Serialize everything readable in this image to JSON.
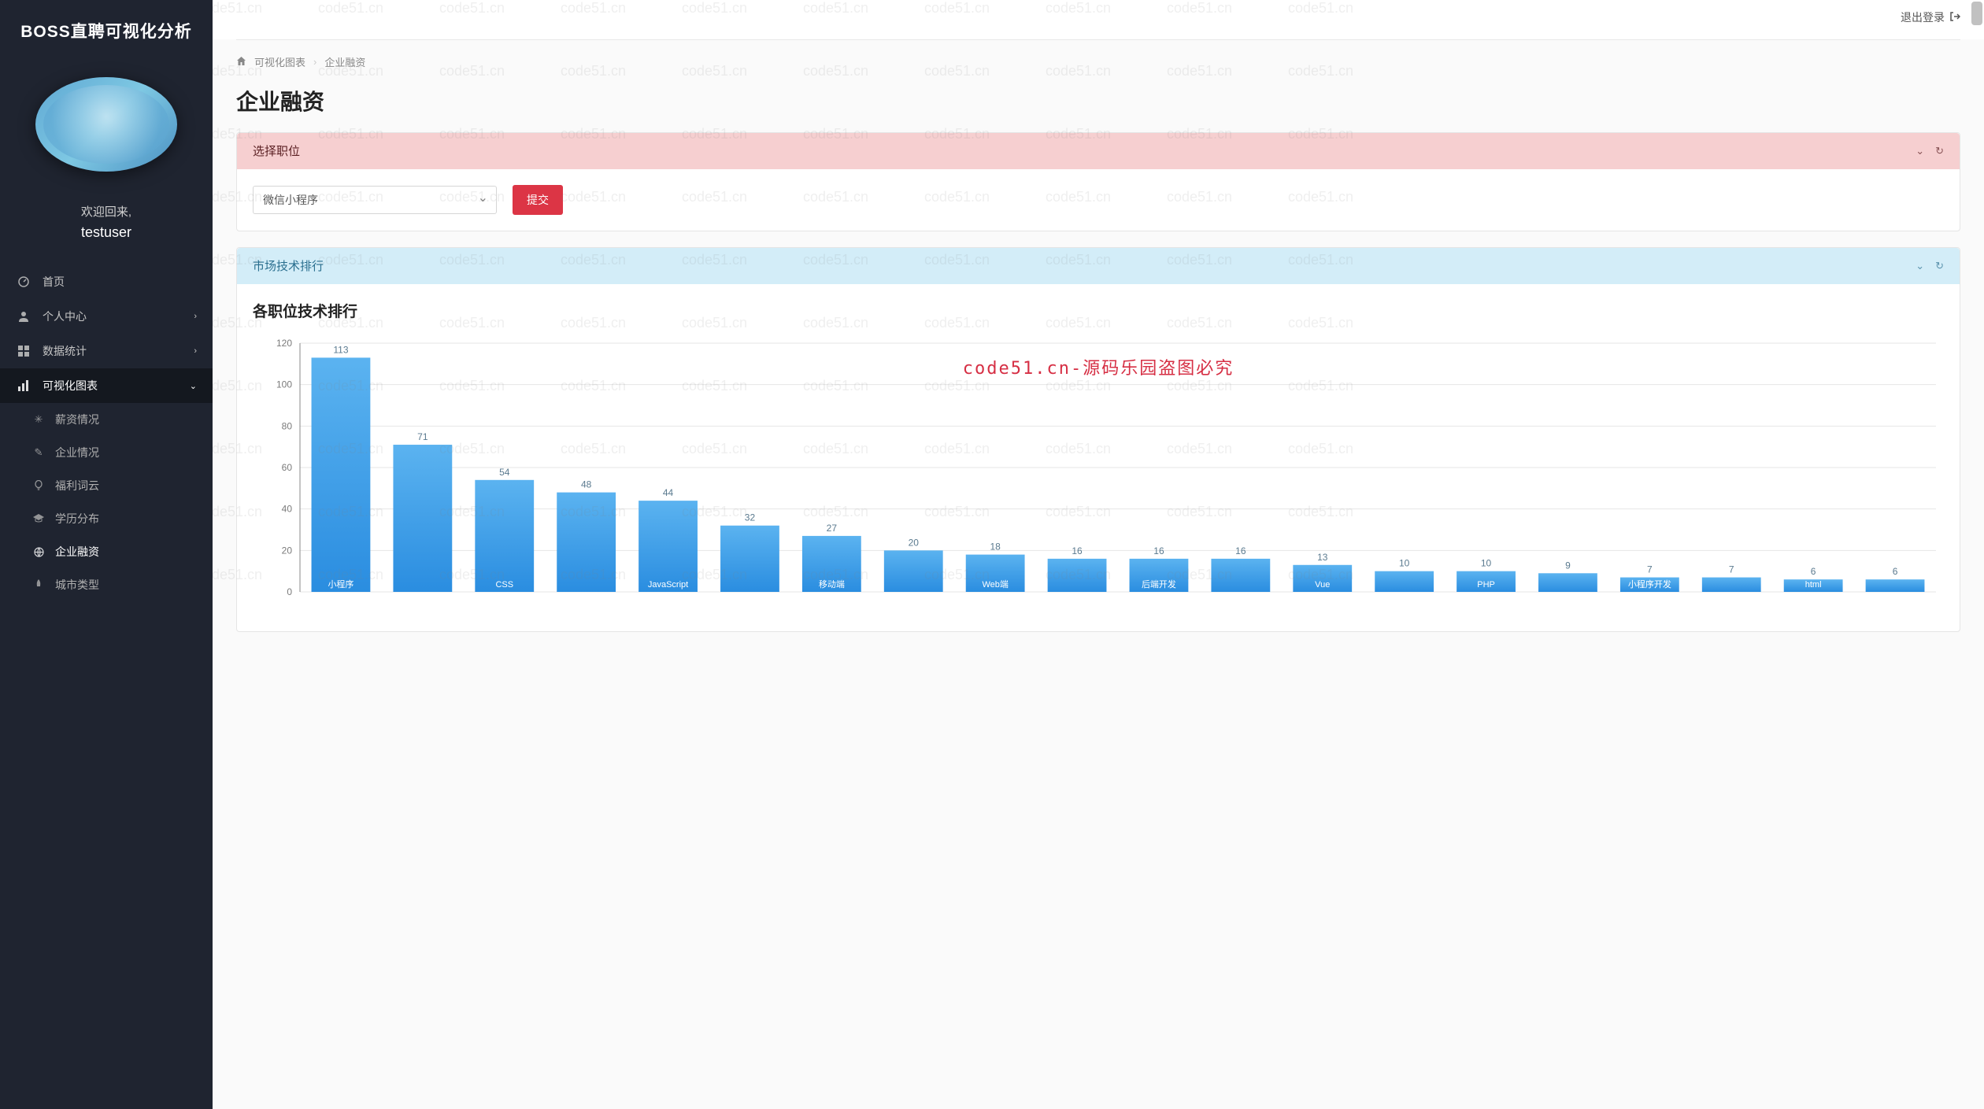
{
  "brand": {
    "title": "BOSS直聘可视化分析"
  },
  "welcome": {
    "hi": "欢迎回来,",
    "user": "testuser"
  },
  "nav": {
    "home": "首页",
    "profile": "个人中心",
    "stats": "数据统计",
    "charts": "可视化图表",
    "sub": {
      "salary": "薪资情况",
      "company": "企业情况",
      "welfare": "福利词云",
      "edu": "学历分布",
      "finance": "企业融资",
      "city": "城市类型"
    }
  },
  "topbar": {
    "logout": "退出登录"
  },
  "crumbs": {
    "a": "可视化图表",
    "b": "企业融资"
  },
  "page": {
    "title": "企业融资"
  },
  "panel1": {
    "title": "选择职位",
    "select_value": "微信小程序",
    "submit": "提交"
  },
  "panel2": {
    "title": "市场技术排行",
    "chart_title": "各职位技术排行"
  },
  "chart": {
    "type": "bar",
    "ylim": [
      0,
      120
    ],
    "ytick_step": 20,
    "yticks": [
      0,
      20,
      40,
      60,
      80,
      100,
      120
    ],
    "bar_fill_top": "#5bb3f0",
    "bar_fill_bottom": "#2a8de0",
    "bar_gap_ratio": 0.28,
    "grid_color": "#e6e6e6",
    "axis_color": "#888888",
    "label_color": "#7a7a7a",
    "value_label_color": "#5a7a8f",
    "xlabel_color": "#ffffff",
    "categories": [
      "小程序",
      "",
      "CSS",
      "",
      "JavaScript",
      "",
      "移动端",
      "",
      "Web端",
      "",
      "后端开发",
      "",
      "Vue",
      "",
      "PHP",
      "",
      "小程序开发",
      "",
      "html",
      ""
    ],
    "show_label": [
      true,
      false,
      true,
      false,
      true,
      false,
      true,
      false,
      true,
      false,
      true,
      false,
      true,
      false,
      true,
      false,
      true,
      false,
      true,
      false
    ],
    "values": [
      113,
      71,
      54,
      48,
      44,
      32,
      27,
      20,
      18,
      16,
      16,
      16,
      13,
      10,
      10,
      9,
      7,
      7,
      6,
      6
    ]
  },
  "watermark": {
    "text": "code51.cn",
    "center": "code51.cn-源码乐园盗图必究",
    "rows": 10,
    "cols": 10,
    "xstep": 154,
    "ystep": 80
  }
}
